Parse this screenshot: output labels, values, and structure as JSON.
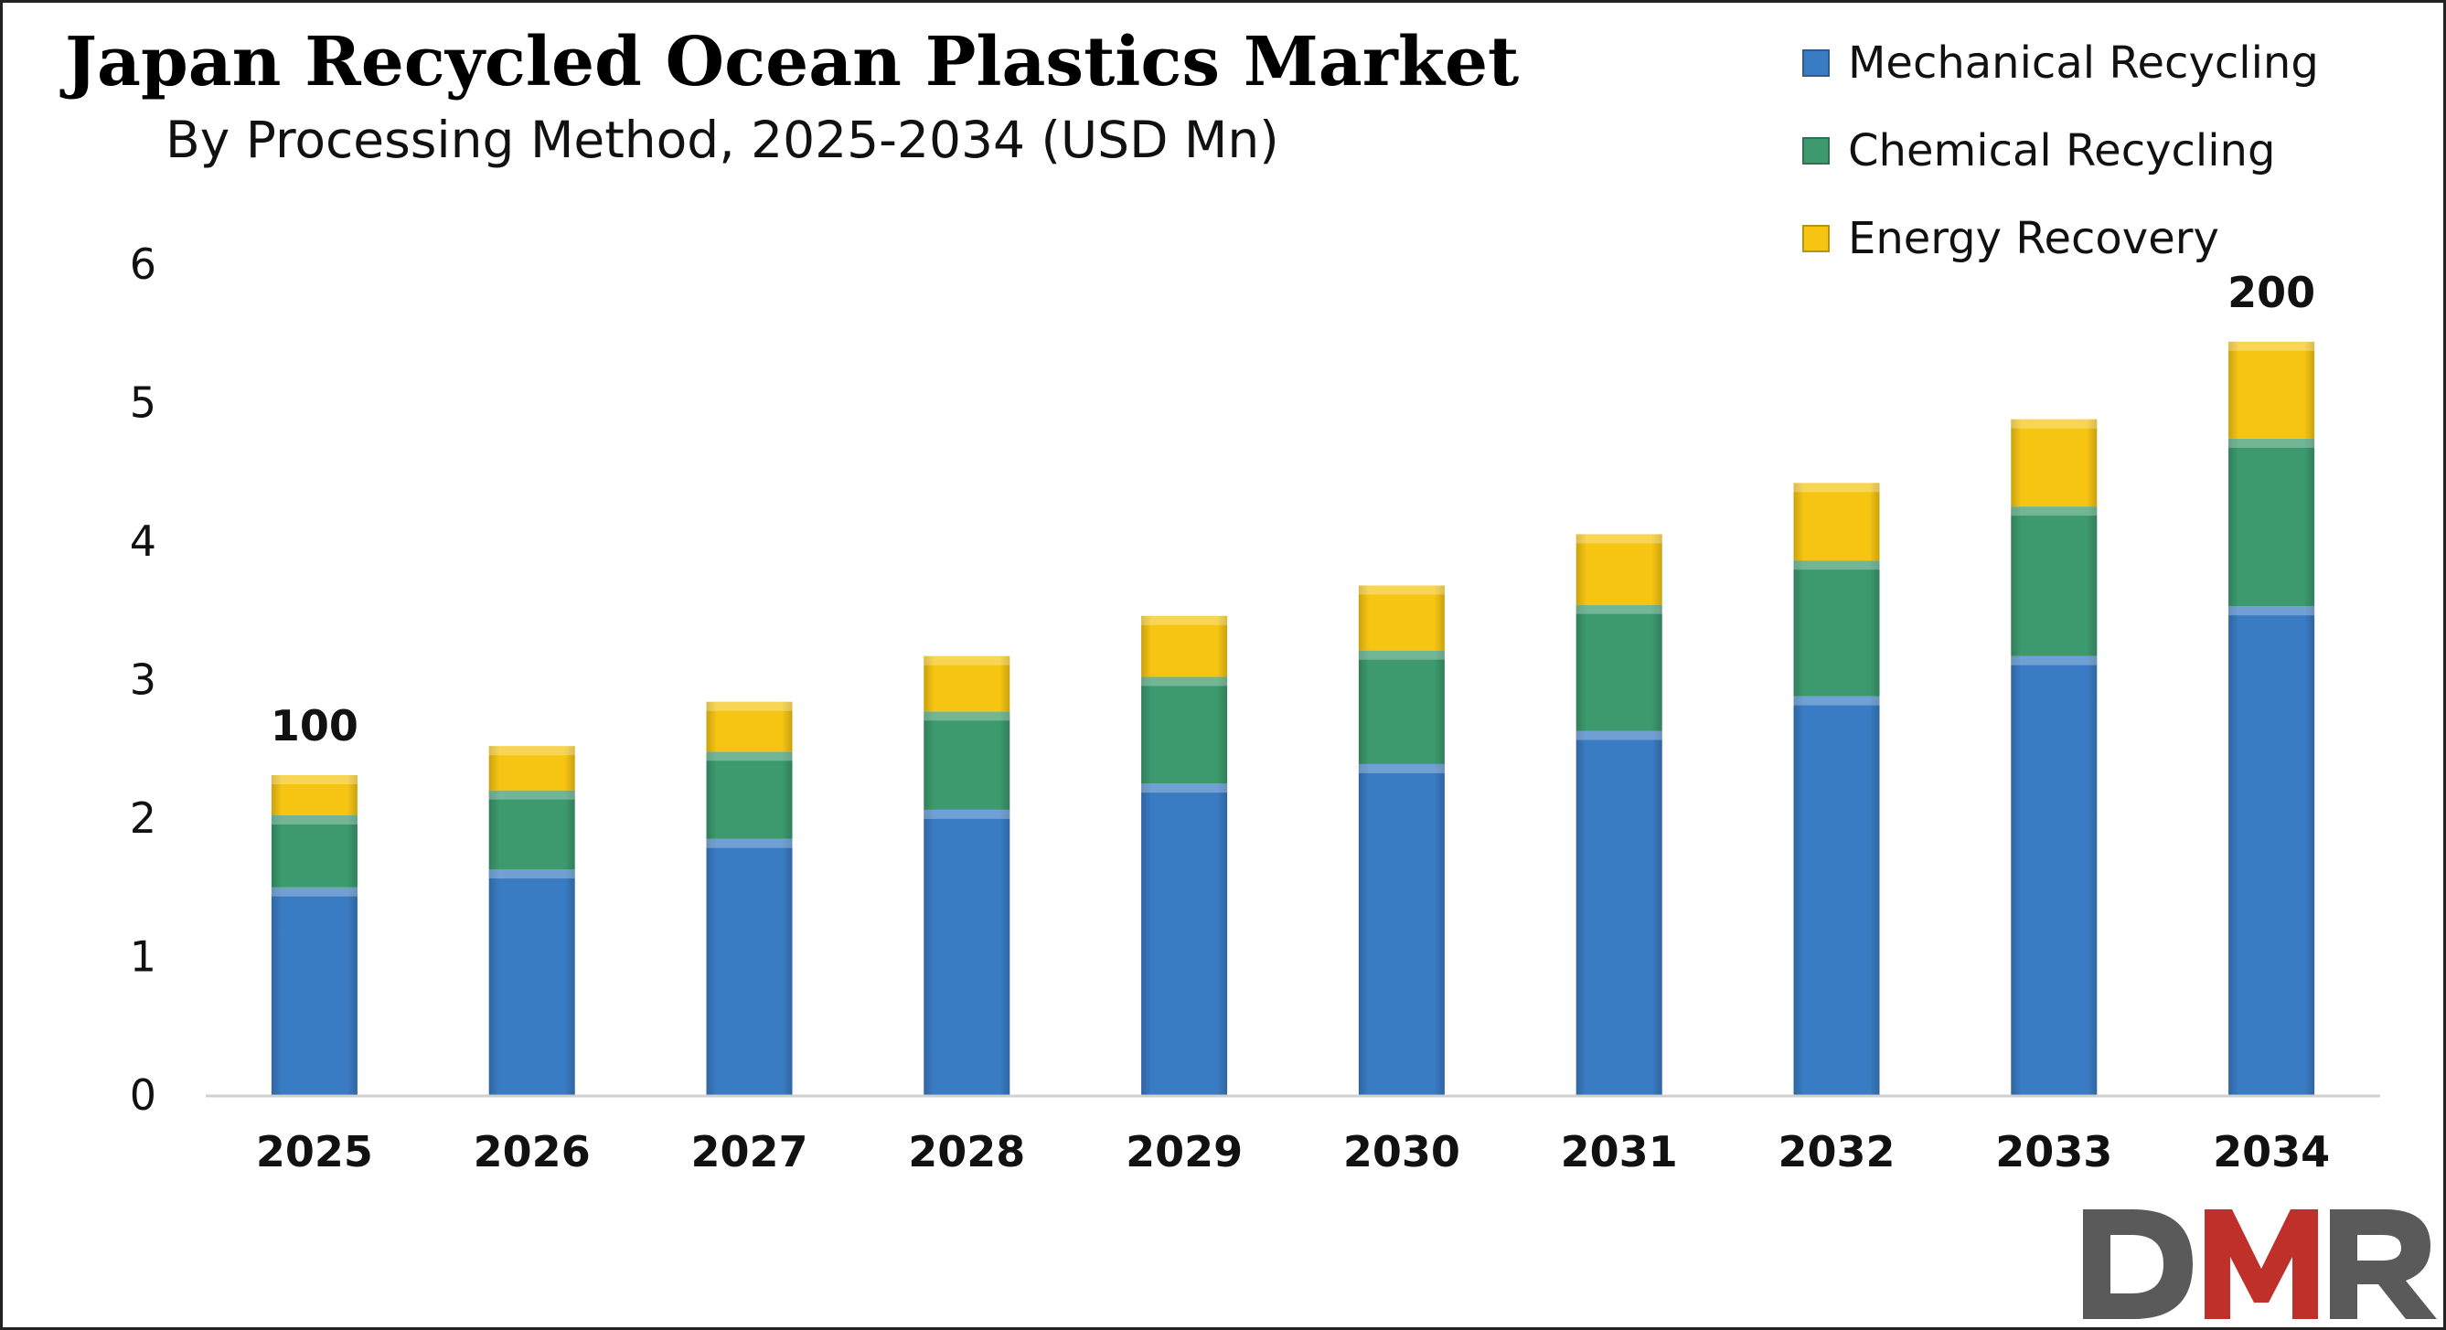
{
  "chart_data": {
    "type": "bar",
    "stacked": true,
    "title": "Japan Recycled Ocean Plastics Market",
    "subtitle": "By Processing Method, 2025-2034 (USD Mn)",
    "xlabel": "",
    "ylabel": "",
    "ylim": [
      0,
      6
    ],
    "yticks": [
      "0",
      "1",
      "2",
      "3",
      "4",
      "5",
      "6"
    ],
    "grid": false,
    "legend_position": "top-right",
    "categories": [
      "2025",
      "2026",
      "2027",
      "2028",
      "2029",
      "2030",
      "2031",
      "2032",
      "2033",
      "2034"
    ],
    "series": [
      {
        "name": "Mechanical Recycling",
        "color": "#3A7CC4",
        "values": [
          1.5,
          1.63,
          1.85,
          2.06,
          2.25,
          2.39,
          2.63,
          2.88,
          3.17,
          3.53
        ]
      },
      {
        "name": "Chemical Recycling",
        "color": "#3C9A6E",
        "values": [
          0.52,
          0.57,
          0.63,
          0.71,
          0.77,
          0.82,
          0.91,
          0.98,
          1.08,
          1.21
        ]
      },
      {
        "name": "Energy Recovery",
        "color": "#F6C512",
        "values": [
          0.29,
          0.32,
          0.36,
          0.4,
          0.44,
          0.47,
          0.51,
          0.56,
          0.63,
          0.7
        ]
      }
    ],
    "data_labels": [
      {
        "category": "2025",
        "text": "100"
      },
      {
        "category": "2034",
        "text": "200"
      }
    ]
  },
  "logo": {
    "text": "DMR",
    "colors": [
      "#5a5a5a",
      "#c0302b"
    ]
  }
}
